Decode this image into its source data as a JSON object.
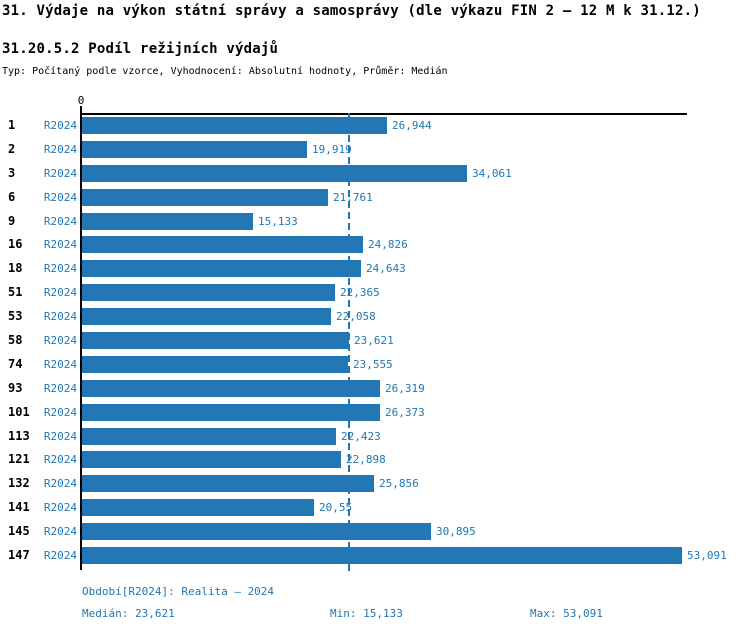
{
  "header": {
    "title": "31. Výdaje na výkon státní správy a samosprávy (dle výkazu FIN 2 – 12 M k 31.12.)",
    "subtitle": "31.20.5.2 Podíl režijních výdajů",
    "meta": "Typ: Počítaný podle vzorce, Vyhodnocení: Absolutní hodnoty, Průměr: Medián"
  },
  "chart_data": {
    "type": "bar",
    "orientation": "horizontal",
    "title": "31.20.5.2 Podíl režijních výdajů",
    "categories": [
      "1",
      "2",
      "3",
      "6",
      "9",
      "16",
      "18",
      "51",
      "53",
      "58",
      "74",
      "93",
      "101",
      "113",
      "121",
      "132",
      "141",
      "145",
      "147"
    ],
    "series": [
      {
        "name": "R2024",
        "values": [
          26.944,
          19.919,
          34.061,
          21.761,
          15.133,
          24.826,
          24.643,
          22.365,
          22.058,
          23.621,
          23.555,
          26.319,
          26.373,
          22.423,
          22.898,
          25.856,
          20.55,
          30.895,
          53.091
        ],
        "value_labels": [
          "26,944",
          "19,919",
          "34,061",
          "21,761",
          "15,133",
          "24,826",
          "24,643",
          "22,365",
          "22,058",
          "23,621",
          "23,555",
          "26,319",
          "26,373",
          "22,423",
          "22,898",
          "25,856",
          "20,55",
          "30,895",
          "53,091"
        ]
      }
    ],
    "x_axis_zero_label": "0",
    "xlim": [
      0,
      53.6
    ],
    "median_value": 23.621,
    "median_line_style": "dashed",
    "grid": false,
    "legend_position": "none",
    "bar_color": "#2377b4",
    "label_color": "#1f77b4",
    "axis_color": "#000000"
  },
  "footer": {
    "period": "Období[R2024]: Realita – 2024",
    "median": "Medián: 23,621",
    "min": "Min: 15,133",
    "max": "Max: 53,091"
  }
}
